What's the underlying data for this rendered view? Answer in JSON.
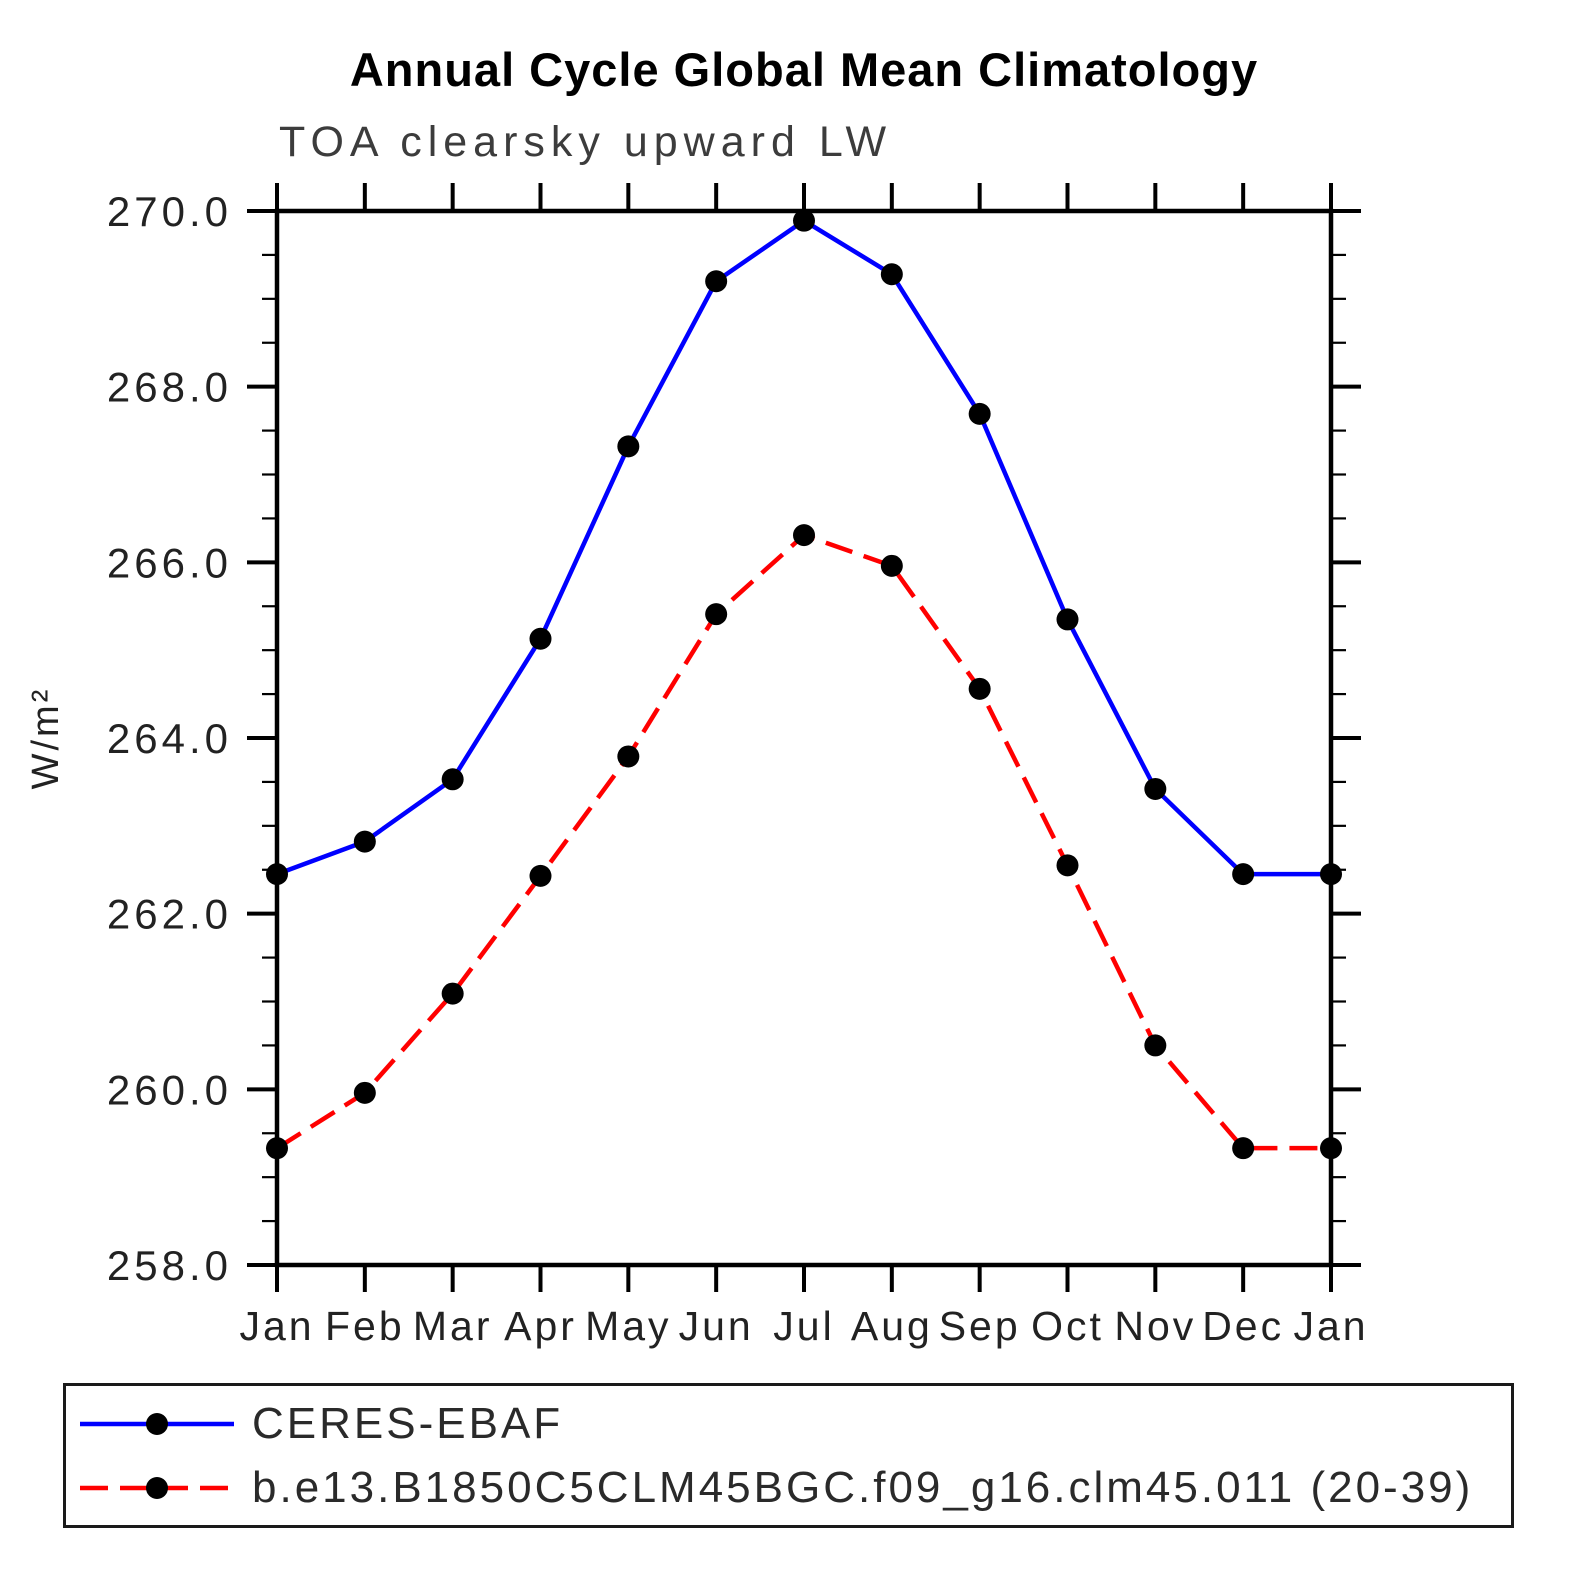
{
  "chart_data": {
    "type": "line",
    "title": "Annual Cycle Global Mean Climatology",
    "subtitle": "TOA clearsky upward LW",
    "ylabel": "W/m²",
    "ylim": [
      258.0,
      270.0
    ],
    "ytick_interval": 2.0,
    "ytick_minor_interval": 0.5,
    "ytick_labels": [
      "270.0",
      "268.0",
      "266.0",
      "264.0",
      "262.0",
      "260.0",
      "258.0"
    ],
    "x_categories": [
      "Jan",
      "Feb",
      "Mar",
      "Apr",
      "May",
      "Jun",
      "Jul",
      "Aug",
      "Sep",
      "Oct",
      "Nov",
      "Dec",
      "Jan"
    ],
    "grid": false,
    "axis_color": "#000000",
    "legend_position": "bottom-left-box",
    "series": [
      {
        "name": "CERES-EBAF",
        "color": "#0000ff",
        "line_style": "solid",
        "marker": "filled-circle",
        "marker_color": "#000000",
        "values": [
          262.45,
          262.82,
          263.53,
          265.13,
          267.32,
          269.2,
          269.89,
          269.28,
          267.69,
          265.35,
          263.42,
          262.45,
          262.45
        ]
      },
      {
        "name": "b.e13.B1850C5CLM45BGC.f09_g16.clm45.011 (20-39)",
        "color": "#ff0000",
        "line_style": "dashed",
        "marker": "filled-circle",
        "marker_color": "#000000",
        "values": [
          259.33,
          259.96,
          261.09,
          262.43,
          263.79,
          265.41,
          266.31,
          265.96,
          264.56,
          262.55,
          260.5,
          259.33,
          259.33
        ]
      }
    ]
  }
}
